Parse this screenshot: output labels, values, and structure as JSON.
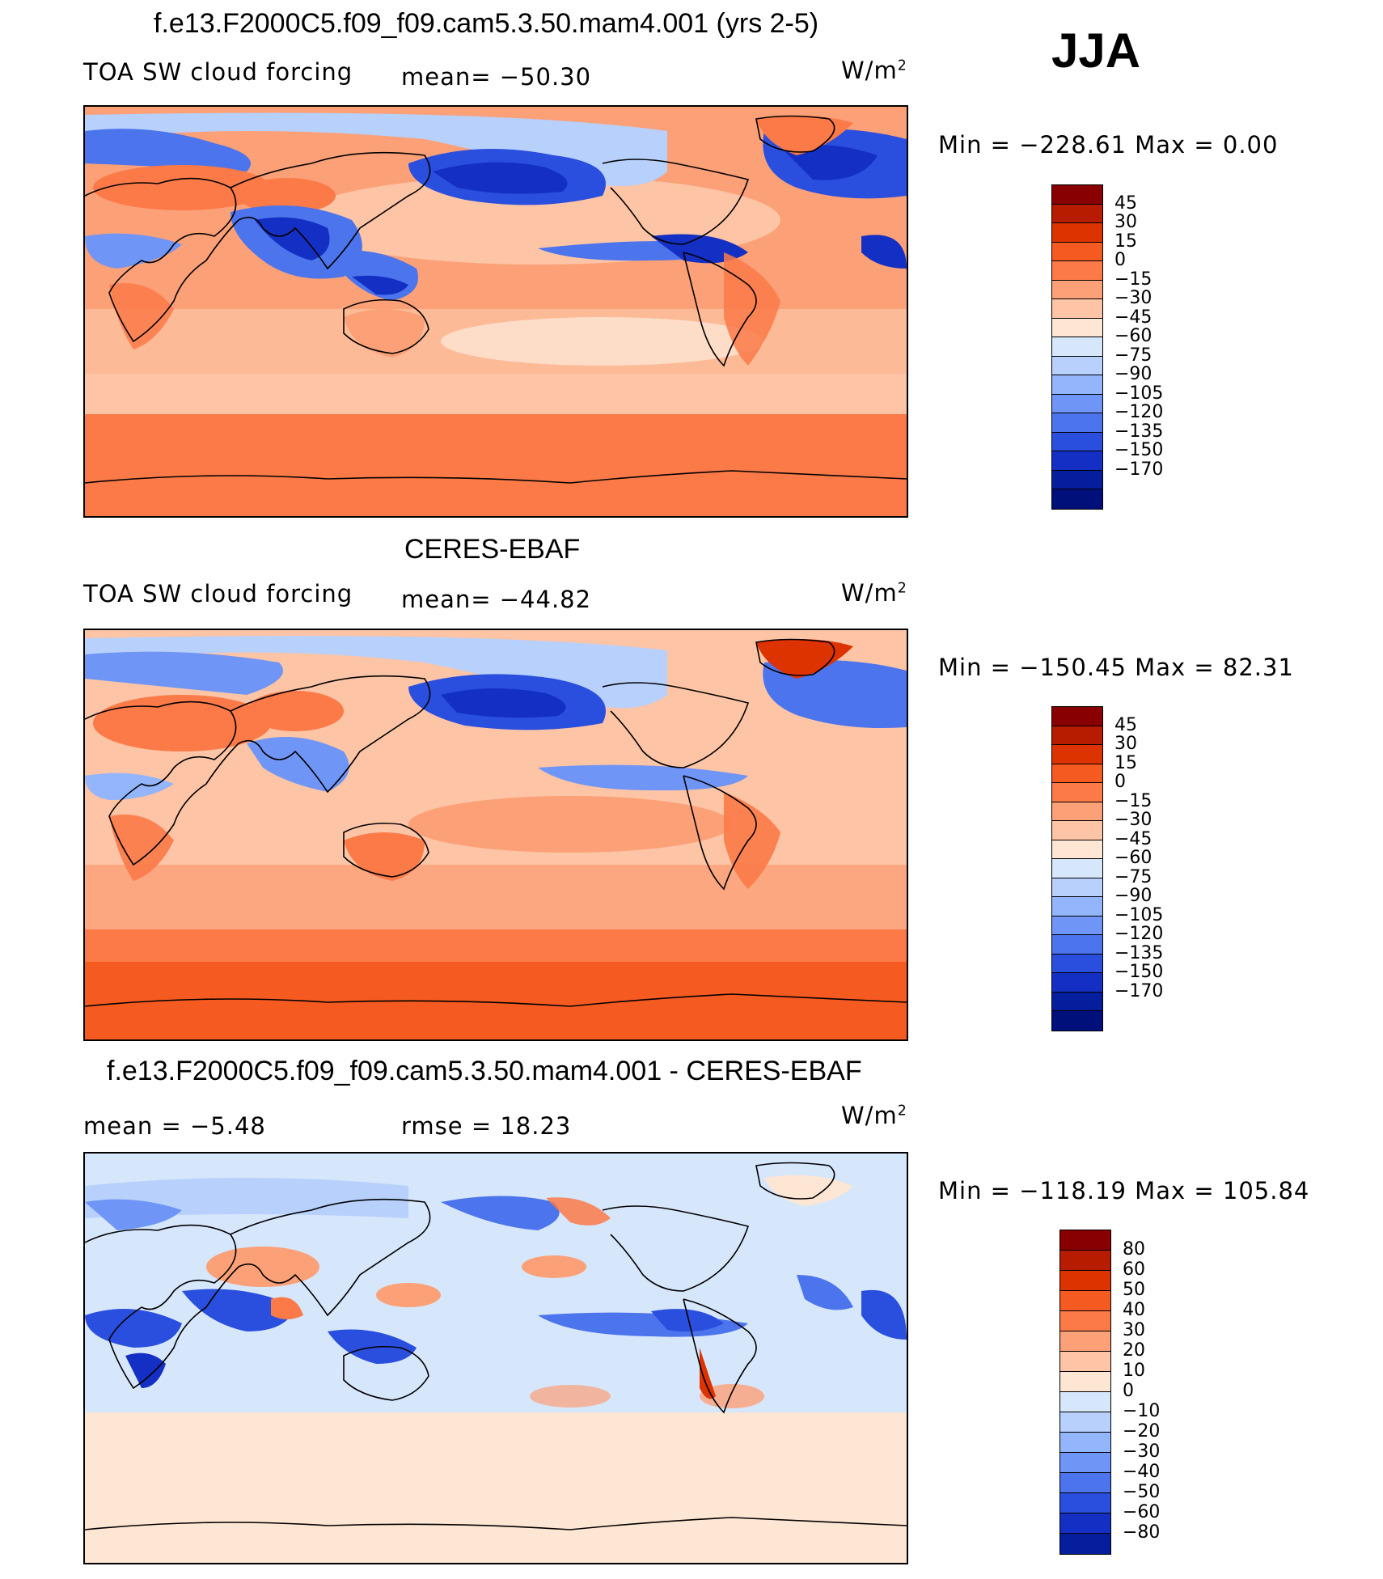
{
  "season": "JJA",
  "units_base": "W/m",
  "units_exp": "2",
  "panels": [
    {
      "title": "f.e13.F2000C5.f09_f09.cam5.3.50.mam4.001 (yrs 2-5)",
      "left_label": "TOA SW cloud forcing",
      "mid_label": "mean= −50.30",
      "minmax": "Min  =  −228.61  Max  =     0.00",
      "colorbar": {
        "colors": [
          "#880000",
          "#b81c00",
          "#dd3300",
          "#f55a20",
          "#fb7a48",
          "#fca077",
          "#fdc4a5",
          "#fde6d4",
          "#d6e6fb",
          "#b7d0fc",
          "#93b5fb",
          "#6f95f6",
          "#4c74ec",
          "#2a4fde",
          "#1430c4",
          "#051e9c",
          "#00107a"
        ],
        "labels": [
          "45",
          "30",
          "15",
          "0",
          "−15",
          "−30",
          "−45",
          "−60",
          "−75",
          "−90",
          "−105",
          "−120",
          "−135",
          "−150",
          "−170"
        ]
      }
    },
    {
      "title": "CERES-EBAF",
      "left_label": "TOA SW cloud forcing",
      "mid_label": "mean= −44.82",
      "minmax": "Min  =  −150.45  Max  =    82.31",
      "colorbar": {
        "colors": [
          "#880000",
          "#b81c00",
          "#dd3300",
          "#f55a20",
          "#fb7a48",
          "#fca077",
          "#fdc4a5",
          "#fde6d4",
          "#d6e6fb",
          "#b7d0fc",
          "#93b5fb",
          "#6f95f6",
          "#4c74ec",
          "#2a4fde",
          "#1430c4",
          "#051e9c",
          "#00107a"
        ],
        "labels": [
          "45",
          "30",
          "15",
          "0",
          "−15",
          "−30",
          "−45",
          "−60",
          "−75",
          "−90",
          "−105",
          "−120",
          "−135",
          "−150",
          "−170"
        ]
      }
    },
    {
      "title": "f.e13.F2000C5.f09_f09.cam5.3.50.mam4.001 - CERES-EBAF",
      "left_label": "mean  =    −5.48",
      "mid_label": "rmse  =    18.23",
      "minmax": "Min  =  −118.19  Max  =  105.84",
      "colorbar": {
        "colors": [
          "#880000",
          "#b81c00",
          "#dd3300",
          "#f55a20",
          "#fb7a48",
          "#fca077",
          "#fdc4a5",
          "#fde6d4",
          "#d6e6fb",
          "#b7d0fc",
          "#93b5fb",
          "#6f95f6",
          "#4c74ec",
          "#2a4fde",
          "#1430c4",
          "#051e9c"
        ],
        "labels": [
          "80",
          "60",
          "50",
          "40",
          "30",
          "20",
          "10",
          "0",
          "−10",
          "−20",
          "−30",
          "−40",
          "−50",
          "−60",
          "−80"
        ]
      }
    }
  ]
}
